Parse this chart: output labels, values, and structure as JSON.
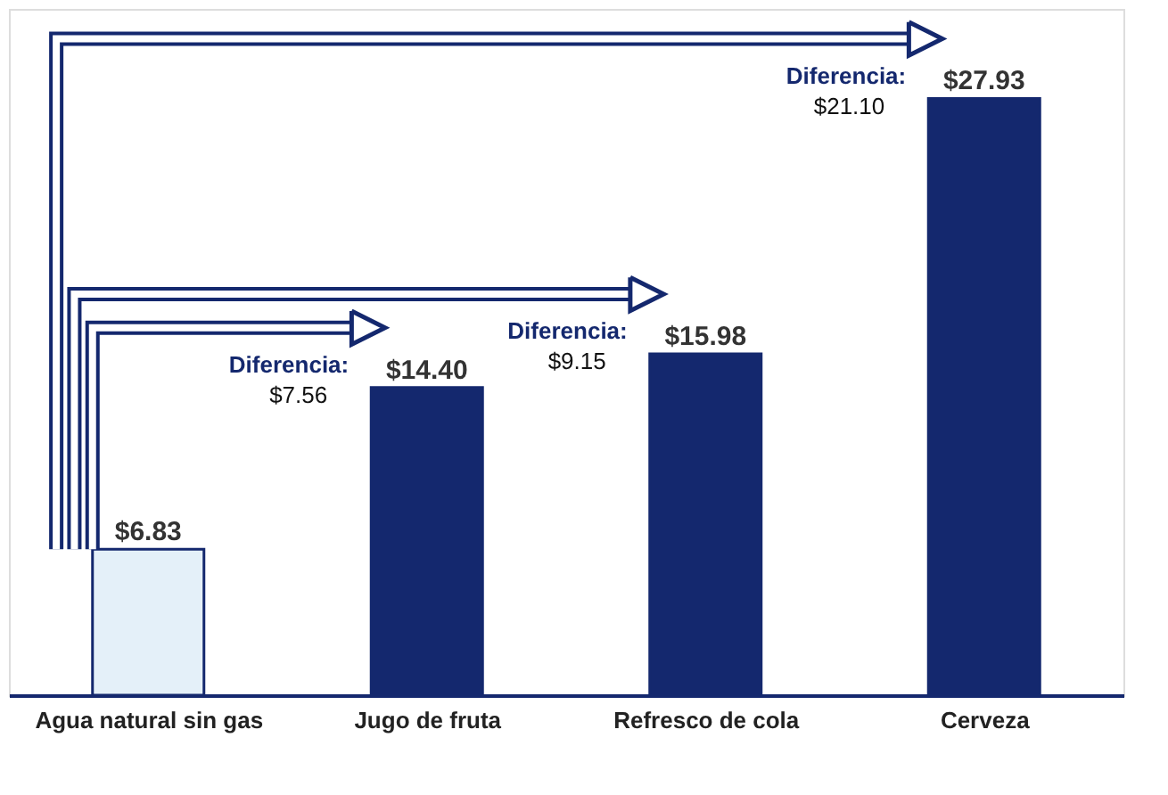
{
  "chart_data": {
    "type": "bar",
    "categories": [
      "Agua natural sin gas",
      "Jugo de fruta",
      "Refresco de cola",
      "Cerveza"
    ],
    "values": [
      6.83,
      14.4,
      15.98,
      27.93
    ],
    "colors": [
      "#e4f0f9",
      "#14286e",
      "#14286e",
      "#14286e"
    ],
    "value_labels": [
      "$6.83",
      "$14.40",
      "$15.98",
      "$27.93"
    ],
    "annotations": [
      "Diferencia: $7.56",
      "Diferencia: $9.15",
      "Diferencia: $21.10"
    ],
    "grid": false
  }
}
